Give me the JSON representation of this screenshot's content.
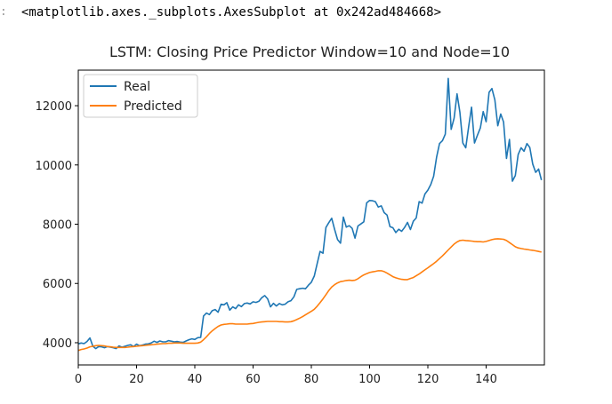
{
  "cell": {
    "prompt": ":",
    "repr": "<matplotlib.axes._subplots.AxesSubplot at 0x242ad484668>"
  },
  "chart_data": {
    "type": "line",
    "title": "LSTM: Closing Price Predictor Window=10 and Node=10",
    "xlabel": "",
    "ylabel": "",
    "xlim": [
      0,
      160
    ],
    "ylim": [
      3250,
      13200
    ],
    "xticks": [
      0,
      20,
      40,
      60,
      80,
      100,
      120,
      140
    ],
    "yticks": [
      4000,
      6000,
      8000,
      10000,
      12000
    ],
    "grid": false,
    "legend": "upper-left",
    "series": [
      {
        "name": "Real",
        "color": "#1f77b4",
        "x": [
          0,
          1,
          2,
          3,
          4,
          5,
          6,
          7,
          8,
          9,
          10,
          11,
          12,
          13,
          14,
          15,
          16,
          17,
          18,
          19,
          20,
          21,
          22,
          23,
          24,
          25,
          26,
          27,
          28,
          29,
          30,
          31,
          32,
          33,
          34,
          35,
          36,
          37,
          38,
          39,
          40,
          41,
          42,
          43,
          44,
          45,
          46,
          47,
          48,
          49,
          50,
          51,
          52,
          53,
          54,
          55,
          56,
          57,
          58,
          59,
          60,
          61,
          62,
          63,
          64,
          65,
          66,
          67,
          68,
          69,
          70,
          71,
          72,
          73,
          74,
          75,
          76,
          77,
          78,
          79,
          80,
          81,
          82,
          83,
          84,
          85,
          86,
          87,
          88,
          89,
          90,
          91,
          92,
          93,
          94,
          95,
          96,
          97,
          98,
          99,
          100,
          101,
          102,
          103,
          104,
          105,
          106,
          107,
          108,
          109,
          110,
          111,
          112,
          113,
          114,
          115,
          116,
          117,
          118,
          119,
          120,
          121,
          122,
          123,
          124,
          125,
          126,
          127,
          128,
          129,
          130,
          131,
          132,
          133,
          134,
          135,
          136,
          137,
          138,
          139,
          140,
          141,
          142,
          143,
          144,
          145,
          146,
          147,
          148,
          149,
          150,
          151,
          152,
          153,
          154,
          155,
          156,
          157,
          158,
          159
        ],
        "values": [
          3960,
          3990,
          3970,
          4040,
          4160,
          3880,
          3800,
          3870,
          3860,
          3830,
          3870,
          3850,
          3830,
          3800,
          3890,
          3850,
          3880,
          3910,
          3930,
          3870,
          3950,
          3900,
          3920,
          3950,
          3960,
          3990,
          4050,
          4010,
          4060,
          4030,
          4030,
          4070,
          4050,
          4030,
          4040,
          4020,
          4010,
          4060,
          4100,
          4130,
          4110,
          4170,
          4180,
          4900,
          5000,
          4950,
          5080,
          5120,
          5030,
          5300,
          5280,
          5350,
          5100,
          5210,
          5150,
          5280,
          5220,
          5320,
          5340,
          5310,
          5380,
          5360,
          5400,
          5520,
          5590,
          5480,
          5210,
          5330,
          5240,
          5320,
          5280,
          5300,
          5380,
          5420,
          5550,
          5800,
          5820,
          5840,
          5820,
          5940,
          6040,
          6250,
          6660,
          7080,
          7020,
          7890,
          8050,
          8200,
          7820,
          7480,
          7360,
          8240,
          7900,
          7950,
          7860,
          7530,
          7940,
          8010,
          8080,
          8720,
          8800,
          8790,
          8760,
          8580,
          8620,
          8390,
          8310,
          7920,
          7880,
          7720,
          7830,
          7760,
          7890,
          8060,
          7820,
          8100,
          8210,
          8760,
          8710,
          9020,
          9150,
          9340,
          9620,
          10260,
          10720,
          10820,
          11040,
          12920,
          11200,
          11580,
          12400,
          11780,
          10740,
          10580,
          11300,
          11950,
          10740,
          11000,
          11250,
          11800,
          11460,
          12450,
          12580,
          12200,
          11320,
          11720,
          11450,
          10220,
          10860,
          9450,
          9640,
          10350,
          10580,
          10460,
          10720,
          10590,
          10030,
          9750,
          9860,
          9490
        ]
      },
      {
        "name": "Predicted",
        "color": "#ff7f0e",
        "x": [
          0,
          1,
          2,
          3,
          4,
          5,
          6,
          7,
          8,
          9,
          10,
          11,
          12,
          13,
          14,
          15,
          16,
          17,
          18,
          19,
          20,
          21,
          22,
          23,
          24,
          25,
          26,
          27,
          28,
          29,
          30,
          31,
          32,
          33,
          34,
          35,
          36,
          37,
          38,
          39,
          40,
          41,
          42,
          43,
          44,
          45,
          46,
          47,
          48,
          49,
          50,
          51,
          52,
          53,
          54,
          55,
          56,
          57,
          58,
          59,
          60,
          61,
          62,
          63,
          64,
          65,
          66,
          67,
          68,
          69,
          70,
          71,
          72,
          73,
          74,
          75,
          76,
          77,
          78,
          79,
          80,
          81,
          82,
          83,
          84,
          85,
          86,
          87,
          88,
          89,
          90,
          91,
          92,
          93,
          94,
          95,
          96,
          97,
          98,
          99,
          100,
          101,
          102,
          103,
          104,
          105,
          106,
          107,
          108,
          109,
          110,
          111,
          112,
          113,
          114,
          115,
          116,
          117,
          118,
          119,
          120,
          121,
          122,
          123,
          124,
          125,
          126,
          127,
          128,
          129,
          130,
          131,
          132,
          133,
          134,
          135,
          136,
          137,
          138,
          139,
          140,
          141,
          142,
          143,
          144,
          145,
          146,
          147,
          148,
          149,
          150,
          151,
          152,
          153,
          154,
          155,
          156,
          157,
          158,
          159
        ],
        "values": [
          3740,
          3770,
          3790,
          3820,
          3860,
          3880,
          3900,
          3910,
          3900,
          3890,
          3870,
          3860,
          3850,
          3840,
          3840,
          3840,
          3840,
          3850,
          3860,
          3870,
          3880,
          3890,
          3900,
          3910,
          3920,
          3930,
          3940,
          3950,
          3960,
          3970,
          3970,
          3980,
          3980,
          3990,
          3990,
          3990,
          3980,
          3980,
          3980,
          3980,
          3980,
          3990,
          4020,
          4100,
          4200,
          4310,
          4400,
          4480,
          4550,
          4600,
          4620,
          4630,
          4640,
          4640,
          4630,
          4630,
          4630,
          4630,
          4630,
          4640,
          4650,
          4670,
          4690,
          4700,
          4710,
          4720,
          4720,
          4720,
          4720,
          4710,
          4710,
          4700,
          4700,
          4710,
          4740,
          4780,
          4830,
          4880,
          4940,
          5000,
          5060,
          5130,
          5230,
          5350,
          5480,
          5620,
          5760,
          5880,
          5960,
          6020,
          6060,
          6080,
          6100,
          6110,
          6100,
          6110,
          6160,
          6230,
          6290,
          6330,
          6370,
          6390,
          6410,
          6430,
          6430,
          6400,
          6350,
          6290,
          6230,
          6190,
          6160,
          6140,
          6130,
          6130,
          6170,
          6200,
          6260,
          6320,
          6390,
          6460,
          6530,
          6600,
          6670,
          6750,
          6840,
          6930,
          7030,
          7130,
          7230,
          7330,
          7400,
          7450,
          7460,
          7450,
          7440,
          7430,
          7420,
          7410,
          7410,
          7400,
          7420,
          7450,
          7480,
          7500,
          7510,
          7500,
          7490,
          7450,
          7380,
          7310,
          7240,
          7200,
          7180,
          7160,
          7150,
          7130,
          7120,
          7100,
          7080,
          7060
        ]
      }
    ]
  }
}
